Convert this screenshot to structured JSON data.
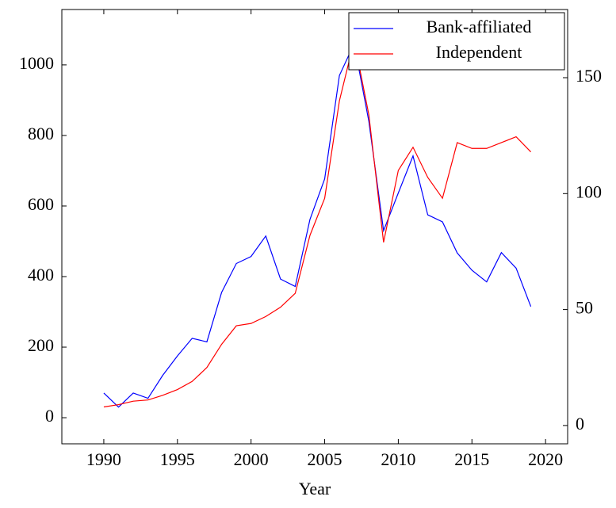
{
  "chart_data": {
    "type": "line",
    "xlabel": "Year",
    "x": [
      1990,
      1991,
      1992,
      1993,
      1994,
      1995,
      1996,
      1997,
      1998,
      1999,
      2000,
      2001,
      2002,
      2003,
      2004,
      2005,
      2006,
      2007,
      2008,
      2009,
      2010,
      2011,
      2012,
      2013,
      2014,
      2015,
      2016,
      2017,
      2018,
      2019
    ],
    "series": [
      {
        "name": "Bank-affiliated",
        "color": "#0000ff",
        "axis": "y",
        "values": [
          70,
          30,
          70,
          55,
          120,
          175,
          225,
          215,
          355,
          437,
          457,
          515,
          393,
          372,
          562,
          677,
          970,
          1060,
          840,
          530,
          637,
          742,
          575,
          555,
          467,
          418,
          385,
          468,
          424,
          315
        ]
      },
      {
        "name": "Independent",
        "color": "#ff0000",
        "axis": "y2",
        "values": [
          8,
          9,
          10.5,
          11,
          13,
          15.5,
          19,
          25,
          35,
          43,
          44,
          47,
          51,
          57,
          82,
          98,
          140,
          166,
          134,
          79,
          110,
          120,
          107,
          98,
          122,
          119.5,
          119.5,
          122,
          124.5,
          118
        ]
      }
    ],
    "xlim": [
      1987.15,
      2021.5
    ],
    "xticks": [
      1990,
      1995,
      2000,
      2005,
      2010,
      2015,
      2020
    ],
    "ylim": [
      -74,
      1157
    ],
    "yticks": [
      0,
      200,
      400,
      600,
      800,
      1000
    ],
    "y2lim": [
      -7.9,
      179.4
    ],
    "y2ticks": [
      0,
      50,
      100,
      150
    ],
    "legend": "top-right"
  }
}
